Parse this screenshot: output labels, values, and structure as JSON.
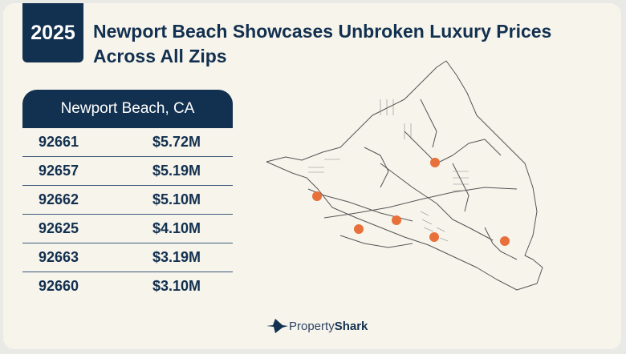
{
  "header": {
    "year": "2025",
    "title": "Newport Beach Showcases Unbroken Luxury Prices Across All Zips"
  },
  "table": {
    "heading": "Newport Beach, CA",
    "rows": [
      {
        "zip": "92661",
        "price": "$5.72M"
      },
      {
        "zip": "92657",
        "price": "$5.19M"
      },
      {
        "zip": "92662",
        "price": "$5.10M"
      },
      {
        "zip": "92625",
        "price": "$4.10M"
      },
      {
        "zip": "92663",
        "price": "$3.19M"
      },
      {
        "zip": "92660",
        "price": "$3.10M"
      }
    ]
  },
  "map": {
    "marker_color": "#e8703a"
  },
  "branding": {
    "logo_part1": "Property",
    "logo_part2": "Shark"
  },
  "colors": {
    "navy": "#12304f",
    "background": "#f7f4ec",
    "marker": "#e8703a"
  }
}
